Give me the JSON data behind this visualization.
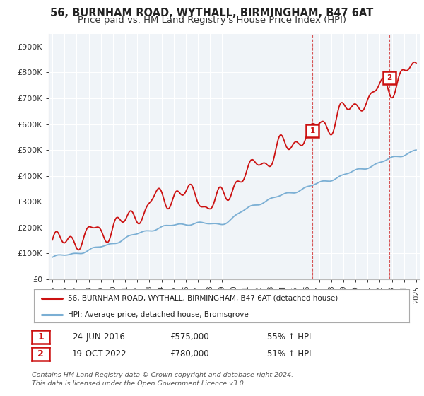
{
  "title": "56, BURNHAM ROAD, WYTHALL, BIRMINGHAM, B47 6AT",
  "subtitle": "Price paid vs. HM Land Registry's House Price Index (HPI)",
  "ylim": [
    0,
    950000
  ],
  "yticks": [
    0,
    100000,
    200000,
    300000,
    400000,
    500000,
    600000,
    700000,
    800000,
    900000
  ],
  "ytick_labels": [
    "£0",
    "£100K",
    "£200K",
    "£300K",
    "£400K",
    "£500K",
    "£600K",
    "£700K",
    "£800K",
    "£900K"
  ],
  "hpi_color": "#7bafd4",
  "price_color": "#cc1111",
  "t1": 2016.46,
  "t2": 2022.79,
  "marker1_price": 575000,
  "marker2_price": 780000,
  "legend_line1": "56, BURNHAM ROAD, WYTHALL, BIRMINGHAM, B47 6AT (detached house)",
  "legend_line2": "HPI: Average price, detached house, Bromsgrove",
  "ann1_num": "1",
  "ann1_date": "24-JUN-2016",
  "ann1_price": "£575,000",
  "ann1_hpi": "55% ↑ HPI",
  "ann2_num": "2",
  "ann2_date": "19-OCT-2022",
  "ann2_price": "£780,000",
  "ann2_hpi": "51% ↑ HPI",
  "footer": "Contains HM Land Registry data © Crown copyright and database right 2024.\nThis data is licensed under the Open Government Licence v3.0.",
  "background_color": "#ffffff",
  "plot_bg_color": "#f0f4f8",
  "grid_color": "#ffffff",
  "title_fontsize": 10.5,
  "subtitle_fontsize": 9.5
}
